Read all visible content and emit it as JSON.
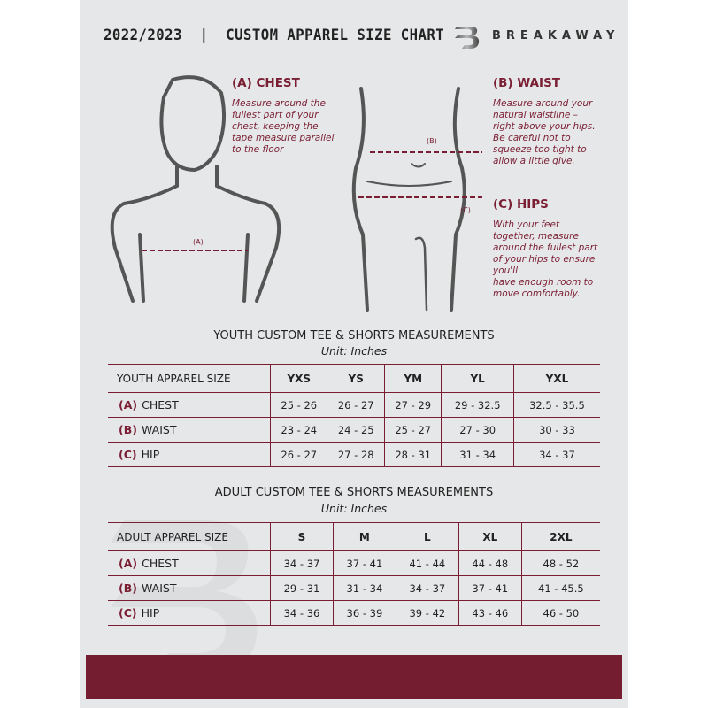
{
  "header": {
    "title": "2022/2023  |  CUSTOM APPAREL SIZE CHART",
    "brand": "BREAKAWAY"
  },
  "colors": {
    "accent": "#741c30",
    "background": "#e6e7e8"
  },
  "chest": {
    "heading": "(A) CHEST",
    "marker": "(A)",
    "lines": [
      "Measure around the",
      "fullest part of your",
      "chest, keeping the",
      "tape measure parallel",
      "to the floor"
    ]
  },
  "waist": {
    "heading": "(B) WAIST",
    "marker": "(B)",
    "lines": [
      "Measure around your",
      "natural waistline –",
      "right above your hips.",
      "Be careful not to",
      "squeeze too tight to",
      "allow a little give."
    ]
  },
  "hips": {
    "heading": "(C) HIPS",
    "marker": "(C)",
    "lines": [
      "With your feet",
      "together, measure",
      "around the fullest part",
      "of your hips to ensure",
      "you'll",
      "have enough room to",
      "move comfortably."
    ]
  },
  "youth": {
    "title": "YOUTH CUSTOM TEE & SHORTS MEASUREMENTS",
    "unit": "Unit: Inches",
    "header": [
      "YOUTH APPAREL SIZE",
      "YXS",
      "YS",
      "YM",
      "YL",
      "YXL"
    ],
    "rows": [
      {
        "key": "(A)",
        "label": "CHEST",
        "values": [
          "25 - 26",
          "26 - 27",
          "27 - 29",
          "29 - 32.5",
          "32.5 - 35.5"
        ]
      },
      {
        "key": "(B)",
        "label": "WAIST",
        "values": [
          "23 - 24",
          "24 - 25",
          "25 - 27",
          "27 - 30",
          "30 - 33"
        ]
      },
      {
        "key": "(C)",
        "label": "HIP",
        "values": [
          "26 - 27",
          "27 - 28",
          "28 - 31",
          "31 - 34",
          "34 - 37"
        ]
      }
    ]
  },
  "adult": {
    "title": "ADULT CUSTOM TEE & SHORTS MEASUREMENTS",
    "unit": "Unit: Inches",
    "header": [
      "ADULT APPAREL SIZE",
      "S",
      "M",
      "L",
      "XL",
      "2XL"
    ],
    "rows": [
      {
        "key": "(A)",
        "label": "CHEST",
        "values": [
          "34 - 37",
          "37 - 41",
          "41 - 44",
          "44 - 48",
          "48 - 52"
        ]
      },
      {
        "key": "(B)",
        "label": "WAIST",
        "values": [
          "29 - 31",
          "31 - 34",
          "34 - 37",
          "37 - 41",
          "41 - 45.5"
        ]
      },
      {
        "key": "(C)",
        "label": "HIP",
        "values": [
          "34 - 36",
          "36 - 39",
          "39 - 42",
          "43 - 46",
          "46 - 50"
        ]
      }
    ]
  }
}
